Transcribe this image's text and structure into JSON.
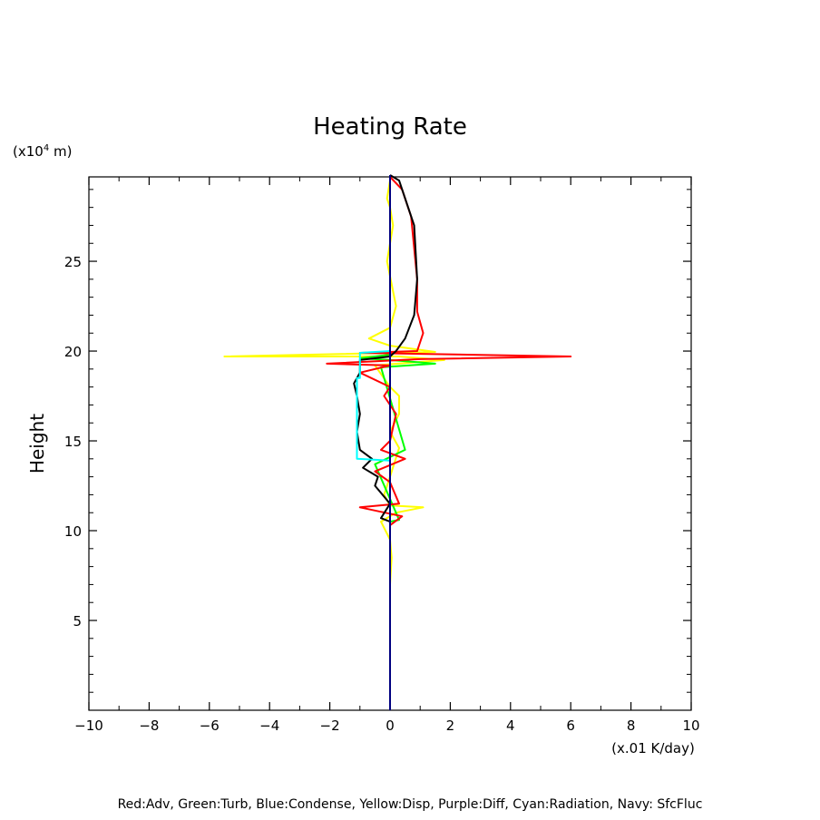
{
  "chart_data": {
    "type": "line",
    "title": "Heating Rate",
    "xlabel": "(x.01 K/day)",
    "ylabel": "Height",
    "yunit_prefix": "(x10",
    "yunit_exp": "4",
    "yunit_suffix": " m)",
    "footer": "Red:Adv, Green:Turb, Blue:Condense, Yellow:Disp, Purple:Diff, Cyan:Radiation, Navy: SfcFluc",
    "xlim": [
      -10,
      10
    ],
    "ylim": [
      0,
      29.7
    ],
    "xticks": [
      -10,
      -8,
      -6,
      -4,
      -2,
      0,
      2,
      4,
      6,
      8,
      10
    ],
    "xtick_labels": [
      "−10",
      "−8",
      "−6",
      "−4",
      "−2",
      "0",
      "2",
      "4",
      "6",
      "8",
      "10"
    ],
    "yticks": [
      5,
      10,
      15,
      20,
      25
    ],
    "ytick_labels": [
      "5",
      "10",
      "15",
      "20",
      "25"
    ],
    "series": [
      {
        "name": "Yellow:Disp",
        "color": "#ffff00",
        "points": [
          [
            0,
            7
          ],
          [
            0.05,
            8.5
          ],
          [
            0,
            9.5
          ],
          [
            -0.3,
            10.5
          ],
          [
            0.2,
            11
          ],
          [
            1.1,
            11.3
          ],
          [
            0,
            11.4
          ],
          [
            -0.2,
            12
          ],
          [
            0,
            13
          ],
          [
            0.3,
            14.6
          ],
          [
            0,
            15.5
          ],
          [
            0.3,
            16.5
          ],
          [
            0.3,
            17.5
          ],
          [
            0,
            18
          ],
          [
            -0.5,
            19.2
          ],
          [
            1.8,
            19.5
          ],
          [
            0.3,
            19.7
          ],
          [
            -5.5,
            19.7
          ],
          [
            1.5,
            19.95
          ],
          [
            0,
            20.3
          ],
          [
            -0.7,
            20.7
          ],
          [
            0,
            21.3
          ],
          [
            0.2,
            22.5
          ],
          [
            -0.1,
            25
          ],
          [
            0.1,
            27
          ],
          [
            0,
            28
          ],
          [
            -0.1,
            28.5
          ],
          [
            0,
            29.5
          ]
        ]
      },
      {
        "name": "Green:Turb",
        "color": "#00ff00",
        "points": [
          [
            0,
            10.5
          ],
          [
            0.3,
            10.6
          ],
          [
            -0.5,
            13.7
          ],
          [
            0.5,
            14.5
          ],
          [
            -0.3,
            19.1
          ],
          [
            1.5,
            19.3
          ],
          [
            0,
            19.5
          ],
          [
            -1,
            19.6
          ],
          [
            0,
            19.8
          ]
        ]
      },
      {
        "name": "Red:Adv",
        "color": "#ff0000",
        "points": [
          [
            0,
            9.7
          ],
          [
            0,
            10.3
          ],
          [
            0.4,
            10.8
          ],
          [
            -1,
            11.3
          ],
          [
            0.3,
            11.5
          ],
          [
            0,
            12.7
          ],
          [
            -0.5,
            13.3
          ],
          [
            0.5,
            14
          ],
          [
            -0.3,
            14.5
          ],
          [
            0,
            15
          ],
          [
            0.2,
            16.5
          ],
          [
            -0.2,
            17.5
          ],
          [
            0,
            18
          ],
          [
            -1,
            18.8
          ],
          [
            0,
            19.2
          ],
          [
            -2.1,
            19.3
          ],
          [
            1,
            19.55
          ],
          [
            6,
            19.7
          ],
          [
            -1,
            19.9
          ],
          [
            0.9,
            20
          ],
          [
            1.1,
            21
          ],
          [
            0.9,
            22.2
          ],
          [
            0.9,
            24
          ],
          [
            0.7,
            27.5
          ],
          [
            0.4,
            29
          ],
          [
            0,
            29.7
          ]
        ]
      },
      {
        "name": "Black",
        "color": "#000000",
        "points": [
          [
            0,
            10.5
          ],
          [
            -0.3,
            10.7
          ],
          [
            0,
            11.5
          ],
          [
            -0.5,
            12.5
          ],
          [
            -0.4,
            13
          ],
          [
            -0.9,
            13.5
          ],
          [
            -0.6,
            14
          ],
          [
            -1,
            14.5
          ],
          [
            -1.1,
            15.5
          ],
          [
            -1,
            16.5
          ],
          [
            -1.1,
            17.5
          ],
          [
            -1.2,
            18.2
          ],
          [
            -1,
            18.8
          ],
          [
            -1,
            19.5
          ],
          [
            0,
            19.7
          ],
          [
            0.2,
            20
          ],
          [
            0.5,
            20.7
          ],
          [
            0.8,
            22
          ],
          [
            0.9,
            24
          ],
          [
            0.8,
            27
          ],
          [
            0.3,
            29.5
          ],
          [
            0,
            29.8
          ]
        ]
      },
      {
        "name": "Cyan:Radiation",
        "color": "#00ffff",
        "points": [
          [
            0,
            13.9
          ],
          [
            -1.1,
            14
          ],
          [
            -1.1,
            18.5
          ],
          [
            -1,
            18.5
          ],
          [
            -1,
            19.9
          ],
          [
            0,
            20
          ]
        ]
      },
      {
        "name": "Blue:Condense",
        "color": "#0000ff",
        "points": [
          [
            0,
            13.7
          ],
          [
            0,
            15.5
          ],
          [
            0,
            20.1
          ]
        ]
      },
      {
        "name": "Navy: SfcFluc",
        "color": "#000080",
        "points": [
          [
            0,
            0
          ],
          [
            0,
            29.8
          ]
        ]
      }
    ]
  }
}
